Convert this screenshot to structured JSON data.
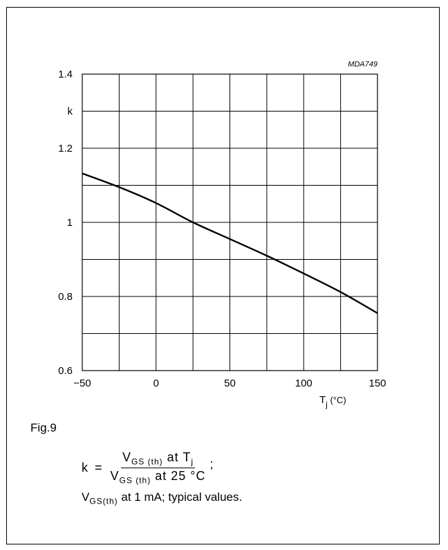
{
  "chart_data": {
    "type": "line",
    "code": "MDA749",
    "xlim": [
      -50,
      150
    ],
    "ylim": [
      0.6,
      1.4
    ],
    "x_ticks": [
      "−50",
      "0",
      "50",
      "100",
      "150"
    ],
    "y_ticks": [
      {
        "value": 1.4,
        "label": "1.4"
      },
      {
        "value": 1.3,
        "label": "k"
      },
      {
        "value": 1.2,
        "label": "1.2"
      },
      {
        "value": 1.0,
        "label": "1"
      },
      {
        "value": 0.8,
        "label": "0.8"
      },
      {
        "value": 0.6,
        "label": "0.6"
      }
    ],
    "ylabel": "k",
    "xlabel": {
      "base": "T",
      "sub": "j",
      "unit": " (°C)"
    },
    "grid": true,
    "series": [
      {
        "x": [
          -50,
          -25,
          0,
          25,
          50,
          75,
          100,
          125,
          150
        ],
        "y": [
          1.132,
          1.095,
          1.052,
          1.0,
          0.955,
          0.91,
          0.862,
          0.812,
          0.755
        ]
      }
    ]
  },
  "figure": {
    "label": "Fig.9",
    "formula": {
      "lhs": "k",
      "eq": "=",
      "num_v": "V",
      "num_sub": "GS (th)",
      "num_rest": "at T",
      "num_sub2": "j",
      "den_v": "V",
      "den_sub": "GS (th)",
      "den_rest": "at 25 °C",
      "tail": ";"
    },
    "note": {
      "v": "V",
      "sub": "GS(th)",
      "rest": " at 1 mA; typical values."
    }
  }
}
